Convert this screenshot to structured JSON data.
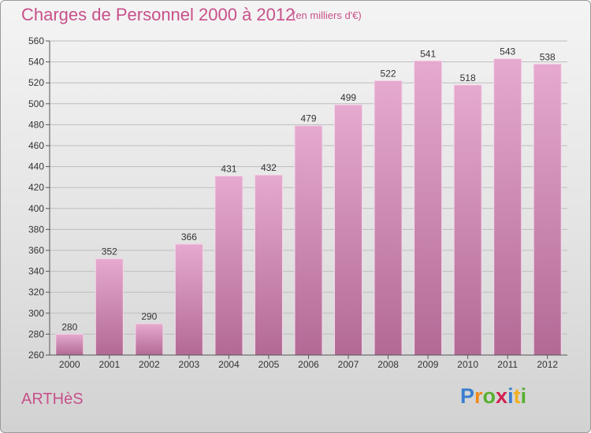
{
  "header": {
    "title": "Charges de Personnel 2000 à 2012",
    "subtitle": "(en milliers d'€)"
  },
  "footer": {
    "commune": "ARTHèS",
    "logo_letters": [
      "P",
      "r",
      "o",
      "x",
      "i",
      "t",
      "i"
    ]
  },
  "colors": {
    "title": "#c8508a",
    "bar_light": "#e6a9cf",
    "bar_dark": "#b26a95",
    "logo": [
      "#3a7fd0",
      "#f08a1a",
      "#58b030",
      "#d02050",
      "#3a7fd0",
      "#f0b020",
      "#58b030"
    ]
  },
  "chart_data": {
    "type": "bar",
    "categories": [
      "2000",
      "2001",
      "2002",
      "2003",
      "2004",
      "2005",
      "2006",
      "2007",
      "2008",
      "2009",
      "2010",
      "2011",
      "2012"
    ],
    "values": [
      280,
      352,
      290,
      366,
      431,
      432,
      479,
      499,
      522,
      541,
      518,
      543,
      538
    ],
    "yticks": [
      260,
      280,
      300,
      320,
      340,
      360,
      380,
      400,
      420,
      440,
      460,
      480,
      500,
      520,
      540,
      560
    ],
    "ylim": [
      260,
      560
    ],
    "grid": true,
    "legend": "none"
  }
}
